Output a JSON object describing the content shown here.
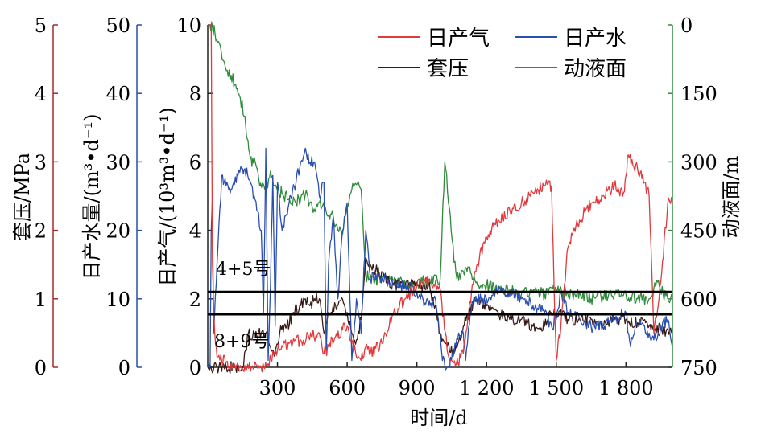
{
  "colors": {
    "gas": "#e03a3e",
    "water": "#2a4fb0",
    "casing": "#3a1a14",
    "fluid": "#2f8a3a",
    "casing_axis": "#a52a2a",
    "water_axis": "#2a4fb0",
    "gas_axis": "#222222",
    "fluid_axis": "#2f8a3a"
  },
  "chart_data": {
    "type": "line",
    "xlabel": "时间/d",
    "xlim": [
      0,
      2000
    ],
    "x_ticks": [
      300,
      600,
      900,
      1200,
      1500,
      1800
    ],
    "x_tick_labels": [
      "300",
      "600",
      "900",
      "1 200",
      "1 500",
      "1 800"
    ],
    "axes": [
      {
        "id": "casing",
        "label": "套压/MPa",
        "lim": [
          0,
          5
        ],
        "ticks": [
          "0",
          "1",
          "2",
          "3",
          "4",
          "5"
        ]
      },
      {
        "id": "water",
        "label": "日产水量/(m³•d⁻¹)",
        "lim": [
          0,
          50
        ],
        "ticks": [
          "0",
          "10",
          "20",
          "30",
          "40",
          "50"
        ]
      },
      {
        "id": "gas",
        "label": "日产气/(10³m³•d⁻¹)",
        "lim": [
          0,
          10
        ],
        "ticks": [
          "0",
          "2",
          "4",
          "6",
          "8",
          "10"
        ]
      },
      {
        "id": "fluid",
        "label": "动液面/m",
        "lim": [
          0,
          750
        ],
        "inverted": true,
        "ticks": [
          "0",
          "150",
          "300",
          "450",
          "600",
          "750"
        ]
      }
    ],
    "legend": {
      "placement": "top-right",
      "entries": [
        "日产气",
        "日产水",
        "套压",
        "动液面"
      ]
    },
    "reference_lines": [
      {
        "label": "4+5号",
        "gas_value": 2.2
      },
      {
        "label": "8+9号",
        "gas_value": 1.55
      }
    ],
    "series": [
      {
        "name": "日产气",
        "axis": "gas",
        "x": [
          0,
          5,
          10,
          15,
          20,
          30,
          40,
          60,
          100,
          140,
          160,
          200,
          230,
          260,
          300,
          350,
          400,
          450,
          480,
          500,
          520,
          550,
          580,
          600,
          620,
          640,
          660,
          680,
          700,
          750,
          800,
          850,
          900,
          950,
          1000,
          1030,
          1050,
          1070,
          1100,
          1120,
          1150,
          1200,
          1250,
          1300,
          1350,
          1400,
          1450,
          1480,
          1490,
          1500,
          1520,
          1550,
          1600,
          1650,
          1700,
          1750,
          1790,
          1800,
          1810,
          1830,
          1850,
          1880,
          1900,
          1920,
          1950,
          1980,
          2000
        ],
        "y": [
          10,
          10,
          10,
          10,
          3,
          1,
          0.3,
          0.2,
          0.1,
          0.05,
          0.05,
          0.05,
          0,
          0.1,
          0.5,
          0.7,
          0.8,
          0.9,
          1.0,
          0.4,
          0.6,
          0.9,
          1.1,
          1.2,
          0.8,
          0.3,
          0.2,
          0.6,
          0.4,
          0.7,
          1.6,
          2.0,
          2.4,
          2.5,
          2.3,
          0.5,
          0.2,
          0.1,
          0.4,
          1.5,
          2.8,
          3.8,
          4.3,
          4.6,
          4.8,
          5.1,
          5.3,
          5.3,
          2.5,
          0.2,
          1.2,
          3.5,
          4.3,
          4.8,
          5.0,
          5.3,
          5.1,
          5.6,
          6.2,
          5.9,
          5.8,
          5.4,
          5.0,
          1.0,
          2.5,
          4.8,
          4.8
        ]
      },
      {
        "name": "日产水",
        "axis": "water",
        "x": [
          0,
          10,
          15,
          20,
          25,
          40,
          60,
          90,
          100,
          130,
          150,
          160,
          200,
          230,
          240,
          250,
          260,
          270,
          280,
          290,
          300,
          320,
          350,
          380,
          400,
          420,
          440,
          460,
          480,
          500,
          510,
          520,
          540,
          560,
          580,
          600,
          620,
          640,
          660,
          680,
          700,
          750,
          800,
          850,
          900,
          950,
          980,
          1000,
          1010,
          1030,
          1060,
          1080,
          1100,
          1110,
          1130,
          1150,
          1200,
          1250,
          1300,
          1350,
          1400,
          1450,
          1480,
          1500,
          1520,
          1550,
          1600,
          1650,
          1700,
          1750,
          1800,
          1820,
          1840,
          1860,
          1880,
          1900,
          1920,
          1950,
          1980,
          2000
        ],
        "y": [
          0,
          0,
          20,
          25,
          5,
          15,
          28,
          26,
          26,
          28,
          29,
          29,
          25,
          20,
          8,
          32,
          1,
          12,
          28,
          6,
          27,
          20,
          24,
          27,
          30,
          32,
          30,
          30,
          25,
          27,
          2,
          15,
          22,
          10,
          20,
          24,
          1,
          10,
          5,
          20,
          13,
          13,
          12,
          12,
          11,
          9,
          10,
          5,
          1,
          0,
          2,
          5,
          5,
          1,
          8,
          10,
          10,
          11,
          11,
          10,
          9,
          8,
          6,
          7,
          11,
          8,
          7,
          6,
          6,
          7,
          8,
          3,
          6,
          7,
          6,
          5,
          4,
          6,
          7,
          3
        ]
      },
      {
        "name": "套压",
        "axis": "casing",
        "x": [
          0,
          40,
          80,
          120,
          150,
          175,
          190,
          200,
          230,
          250,
          270,
          290,
          310,
          340,
          370,
          400,
          420,
          440,
          460,
          480,
          500,
          520,
          550,
          580,
          600,
          620,
          640,
          660,
          680,
          700,
          730,
          760,
          800,
          850,
          900,
          950,
          980,
          1000,
          1030,
          1060,
          1100,
          1150,
          1200,
          1250,
          1300,
          1350,
          1400,
          1450,
          1480,
          1500,
          1550,
          1600,
          1650,
          1700,
          1750,
          1800,
          1850,
          1900,
          1950,
          2000
        ],
        "y": [
          0,
          0,
          0,
          0,
          0,
          0.5,
          0.4,
          0.5,
          0.5,
          0.5,
          0.3,
          0.2,
          0.5,
          0.6,
          0.8,
          0.9,
          1.0,
          0.9,
          1.0,
          1.0,
          0.5,
          0.8,
          0.9,
          1.0,
          0.8,
          0.5,
          0.4,
          0.7,
          1.6,
          1.5,
          1.4,
          1.3,
          1.2,
          1.2,
          1.2,
          1.2,
          0.9,
          0.5,
          0.3,
          0.2,
          0.6,
          1.0,
          0.9,
          0.8,
          0.7,
          0.7,
          0.6,
          0.6,
          0.8,
          0.8,
          0.7,
          0.7,
          0.7,
          0.6,
          0.7,
          0.7,
          0.65,
          0.6,
          0.55,
          0.5
        ]
      },
      {
        "name": "动液面",
        "axis": "fluid",
        "x": [
          10,
          20,
          50,
          70,
          80,
          100,
          120,
          130,
          140,
          160,
          170,
          180,
          190,
          200,
          220,
          250,
          270,
          290,
          320,
          350,
          380,
          400,
          420,
          450,
          480,
          510,
          540,
          560,
          580,
          600,
          620,
          640,
          660,
          680,
          720,
          750,
          800,
          850,
          900,
          950,
          1000,
          1020,
          1040,
          1060,
          1080,
          1100,
          1120,
          1150,
          1200,
          1250,
          1300,
          1350,
          1400,
          1450,
          1500,
          1550,
          1600,
          1650,
          1700,
          1750,
          1800,
          1850,
          1900,
          1940,
          1960,
          1980,
          2000
        ],
        "y": [
          0,
          5,
          40,
          80,
          100,
          110,
          130,
          150,
          160,
          200,
          250,
          280,
          310,
          290,
          340,
          360,
          320,
          350,
          370,
          380,
          390,
          380,
          370,
          400,
          390,
          410,
          420,
          450,
          460,
          400,
          360,
          350,
          360,
          550,
          560,
          550,
          560,
          570,
          565,
          560,
          560,
          300,
          400,
          520,
          560,
          540,
          530,
          560,
          570,
          580,
          580,
          590,
          585,
          590,
          580,
          590,
          585,
          600,
          595,
          590,
          590,
          600,
          600,
          560,
          590,
          600,
          600
        ]
      }
    ]
  }
}
